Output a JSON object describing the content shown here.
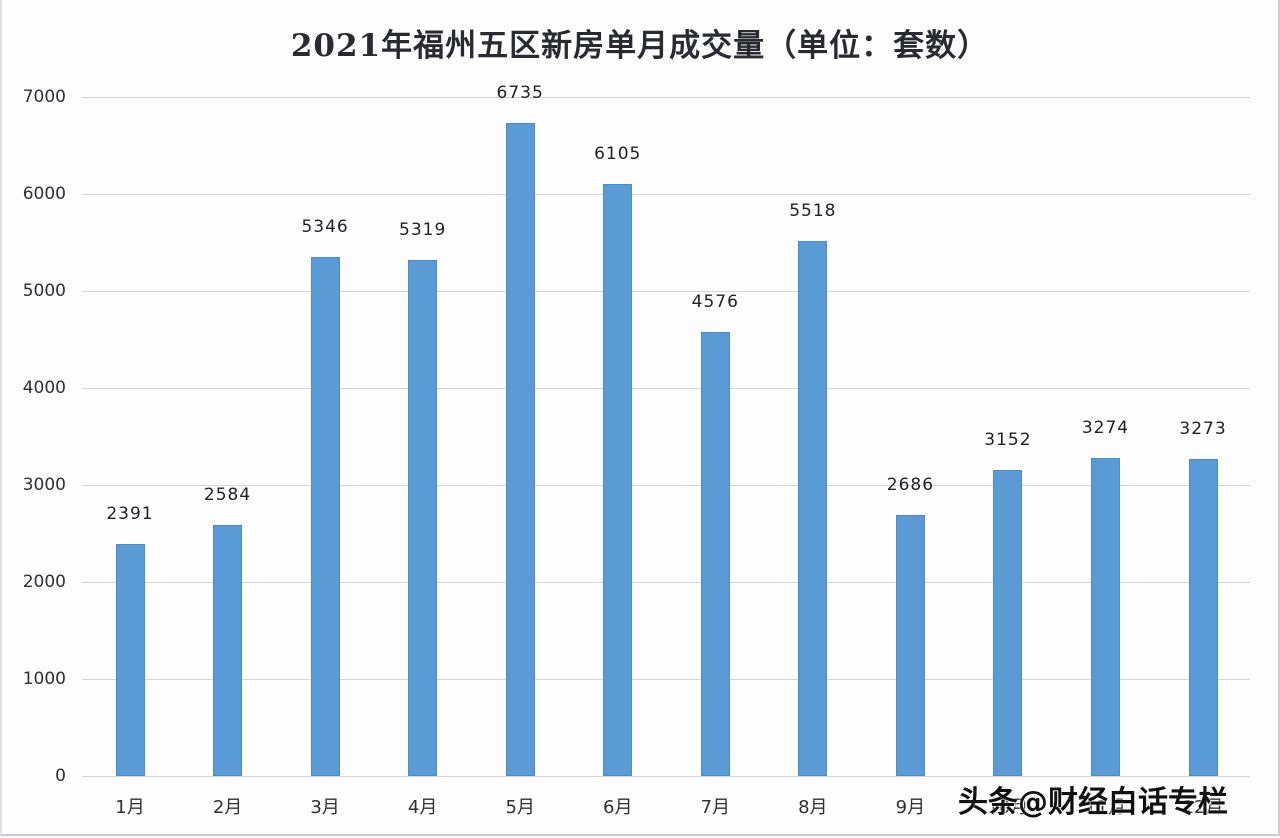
{
  "chart_data": {
    "type": "bar",
    "title": "2021年福州五区新房单月成交量（单位：套数）",
    "xlabel": "",
    "ylabel": "",
    "categories": [
      "1月",
      "2月",
      "3月",
      "4月",
      "5月",
      "6月",
      "7月",
      "8月",
      "9月",
      "10月",
      "11月",
      "12月"
    ],
    "values": [
      2391,
      2584,
      5346,
      5319,
      6735,
      6105,
      4576,
      5518,
      2686,
      3152,
      3274,
      3273
    ],
    "series": [
      {
        "name": "新房单月成交量",
        "values": [
          2391,
          2584,
          5346,
          5319,
          6735,
          6105,
          4576,
          5518,
          2686,
          3152,
          3274,
          3273
        ]
      }
    ],
    "ylim": [
      0,
      7000
    ],
    "yticks": [
      "0",
      "1000",
      "2000",
      "3000",
      "4000",
      "5000",
      "6000",
      "7000"
    ],
    "grid": true,
    "legend": "none",
    "bar_color": "#5b9bd5",
    "data_labels": [
      "2391",
      "2584",
      "5346",
      "5319",
      "6735",
      "6105",
      "4576",
      "5518",
      "2686",
      "3152",
      "3274",
      "3273"
    ]
  },
  "watermark": "头条@财经白话专栏"
}
